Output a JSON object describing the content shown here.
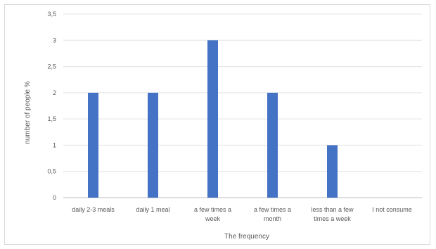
{
  "chart_data": {
    "type": "bar",
    "categories": [
      [
        "daily 2-3 meals"
      ],
      [
        "daily 1 meal"
      ],
      [
        "a few times a",
        "week"
      ],
      [
        "a few times a",
        "month"
      ],
      [
        "less than a few",
        "times a week"
      ],
      [
        "I not consume"
      ]
    ],
    "values": [
      2,
      2,
      3,
      2,
      1,
      0
    ],
    "ylim": [
      0,
      3.5
    ],
    "yticks": [
      "0",
      "0,5",
      "1",
      "1,5",
      "2",
      "2,5",
      "3",
      "3,5"
    ],
    "xlabel": "The frequency",
    "ylabel": "number of people %",
    "bar_color": "#4472c4",
    "grid": true,
    "legend": "none"
  }
}
